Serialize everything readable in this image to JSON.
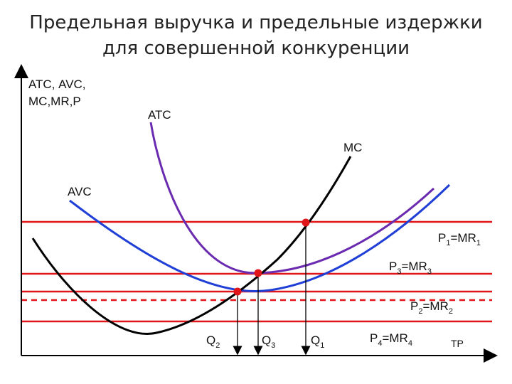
{
  "title": {
    "line1": "Предельная выручка и предельные издержки",
    "line2": "для совершенной конкуренции"
  },
  "axes": {
    "y_label_line1": "АТС, AVC,",
    "y_label_line2": "МС,MR,P",
    "x_label": "TP"
  },
  "curves": {
    "atc": {
      "label": "АТС",
      "color": "#6a2bb0"
    },
    "avc": {
      "label": "AVC",
      "color": "#1f3fd6"
    },
    "mc": {
      "label": "МС",
      "color": "#000000"
    }
  },
  "price_lines": [
    {
      "main": "P",
      "sub1": "1",
      "eq": "=MR",
      "sub2": "1",
      "style": "solid"
    },
    {
      "main": "P",
      "sub1": "3",
      "eq": "=MR",
      "sub2": "3",
      "style": "solid"
    },
    {
      "main": "P",
      "sub1": "2",
      "eq": "=MR",
      "sub2": "2",
      "style": "double"
    },
    {
      "main": "P",
      "sub1": "4",
      "eq": "=MR",
      "sub2": "4",
      "style": "solid"
    }
  ],
  "quantities": [
    {
      "main": "Q",
      "sub": "2"
    },
    {
      "main": "Q",
      "sub": "3"
    },
    {
      "main": "Q",
      "sub": "1"
    }
  ],
  "colors": {
    "price_line": "#e0161b",
    "point": "#e0161b",
    "axis": "#000000"
  }
}
